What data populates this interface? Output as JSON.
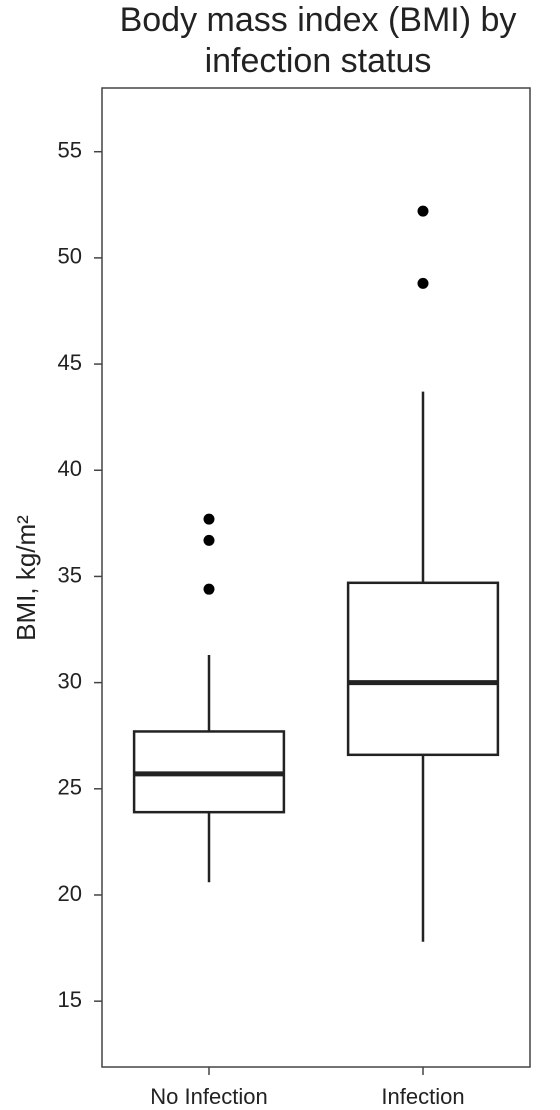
{
  "chart_data": {
    "type": "box",
    "title": [
      "Body mass index (BMI) by",
      "infection status"
    ],
    "y_label": "BMI, kg/m²",
    "categories": [
      "No Infection",
      "Infection"
    ],
    "boxes": [
      {
        "min": 20.6,
        "q1": 23.9,
        "median": 25.7,
        "q3": 27.7,
        "max": 31.3,
        "outliers": [
          34.4,
          36.7,
          37.7
        ]
      },
      {
        "min": 17.8,
        "q1": 26.6,
        "median": 30.0,
        "q3": 34.7,
        "max": 43.7,
        "outliers": [
          48.8,
          52.2
        ]
      }
    ],
    "color": "#222222",
    "ylim": [
      11.9,
      58
    ],
    "yticks": [
      15,
      20,
      25,
      30,
      35,
      40,
      45,
      50,
      55
    ]
  }
}
